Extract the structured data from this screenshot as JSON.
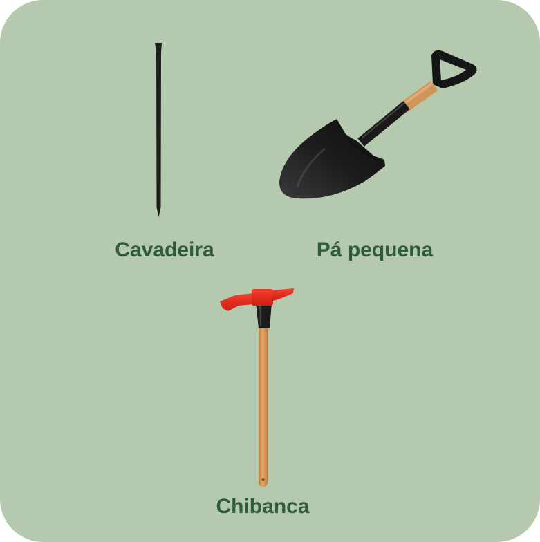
{
  "tools": [
    {
      "label": "Cavadeira",
      "icon": "crowbar-icon"
    },
    {
      "label": "Pá pequena",
      "icon": "shovel-icon"
    },
    {
      "label": "Chibanca",
      "icon": "pickaxe-icon"
    }
  ],
  "colors": {
    "card_background": "#b5c9ae",
    "label_text": "#2e5b3b",
    "pickaxe_head": "#e8291c",
    "wood_handle": "#d49a5e",
    "metal": "#1e1e1e"
  }
}
